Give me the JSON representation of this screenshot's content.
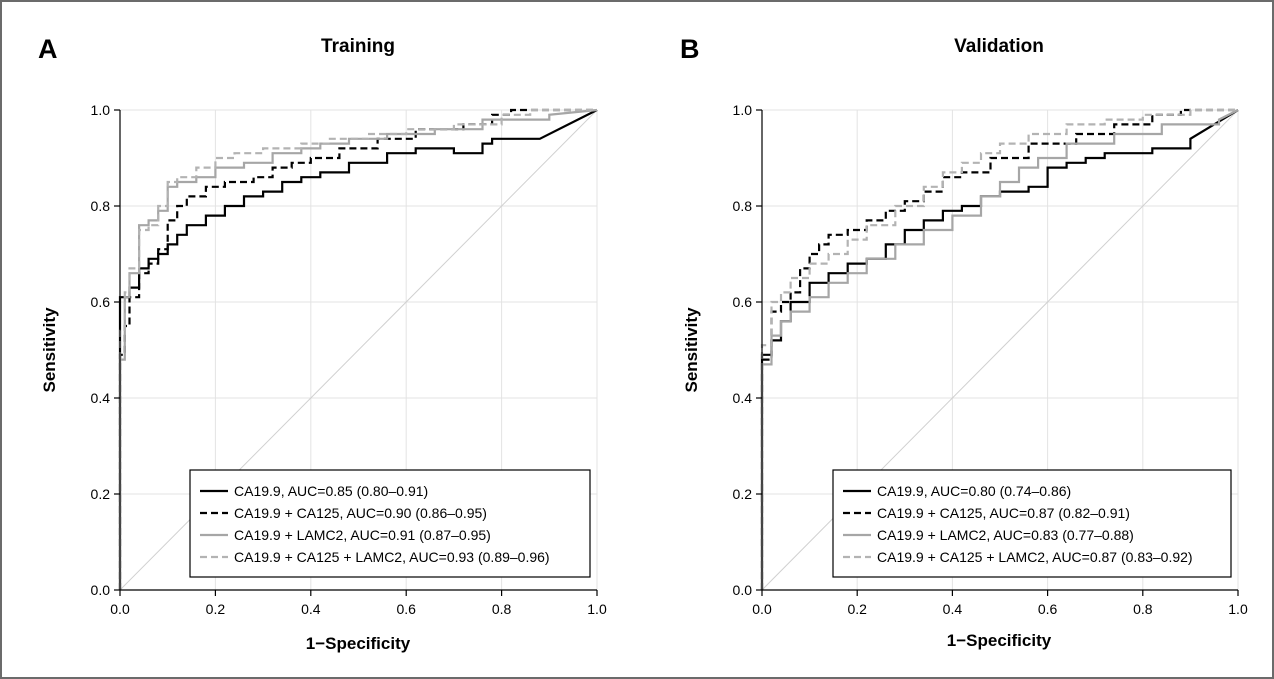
{
  "colors": {
    "black_solid": "#000000",
    "black_dashed": "#000000",
    "gray_solid": "#a6a6a6",
    "gray_dashed": "#b3b3b3",
    "grid": "#e3e3e3",
    "diagonal": "#d0d0d0"
  },
  "chart_data": [
    {
      "type": "line",
      "panel_letter": "A",
      "title": "Training",
      "xlabel": "1−Specificity",
      "ylabel": "Sensitivity",
      "xlim": [
        0,
        1
      ],
      "ylim": [
        0,
        1
      ],
      "xticks": [
        "0.0",
        "0.2",
        "0.4",
        "0.6",
        "0.8",
        "1.0"
      ],
      "yticks": [
        "0.0",
        "0.2",
        "0.4",
        "0.6",
        "0.8",
        "1.0"
      ],
      "grid": true,
      "reference_line": "diagonal",
      "legend_position": "bottom-right",
      "series": [
        {
          "name": "CA19.9, AUC=0.85 (0.80–0.91)",
          "style": "black_solid",
          "x": [
            0,
            0,
            0.02,
            0.02,
            0.04,
            0.04,
            0.06,
            0.06,
            0.08,
            0.08,
            0.1,
            0.1,
            0.12,
            0.12,
            0.14,
            0.14,
            0.18,
            0.18,
            0.22,
            0.22,
            0.26,
            0.26,
            0.3,
            0.3,
            0.34,
            0.34,
            0.38,
            0.38,
            0.42,
            0.42,
            0.48,
            0.48,
            0.56,
            0.56,
            0.62,
            0.62,
            0.7,
            0.7,
            0.76,
            0.76,
            0.78,
            0.78,
            0.88,
            1.0
          ],
          "y": [
            0,
            0.61,
            0.61,
            0.63,
            0.63,
            0.67,
            0.67,
            0.69,
            0.69,
            0.7,
            0.7,
            0.72,
            0.72,
            0.74,
            0.74,
            0.76,
            0.76,
            0.78,
            0.78,
            0.8,
            0.8,
            0.82,
            0.82,
            0.83,
            0.83,
            0.85,
            0.85,
            0.86,
            0.86,
            0.87,
            0.87,
            0.89,
            0.89,
            0.91,
            0.91,
            0.92,
            0.92,
            0.91,
            0.91,
            0.93,
            0.93,
            0.94,
            0.94,
            1.0
          ]
        },
        {
          "name": "CA19.9 + CA125, AUC=0.90 (0.86–0.95)",
          "style": "black_dashed",
          "x": [
            0,
            0,
            0.01,
            0.01,
            0.02,
            0.02,
            0.04,
            0.04,
            0.06,
            0.06,
            0.08,
            0.08,
            0.1,
            0.1,
            0.12,
            0.12,
            0.14,
            0.14,
            0.18,
            0.18,
            0.22,
            0.22,
            0.28,
            0.28,
            0.32,
            0.32,
            0.36,
            0.36,
            0.4,
            0.4,
            0.46,
            0.46,
            0.54,
            0.54,
            0.62,
            0.62,
            0.72,
            0.72,
            0.78,
            0.78,
            0.82,
            0.82,
            1.0
          ],
          "y": [
            0,
            0.49,
            0.49,
            0.55,
            0.55,
            0.61,
            0.61,
            0.66,
            0.66,
            0.68,
            0.68,
            0.71,
            0.71,
            0.77,
            0.77,
            0.8,
            0.8,
            0.82,
            0.82,
            0.84,
            0.84,
            0.85,
            0.85,
            0.86,
            0.86,
            0.88,
            0.88,
            0.89,
            0.89,
            0.9,
            0.9,
            0.92,
            0.92,
            0.94,
            0.94,
            0.96,
            0.96,
            0.97,
            0.97,
            0.99,
            0.99,
            1.0,
            1.0
          ]
        },
        {
          "name": "CA19.9 + LAMC2, AUC=0.91 (0.87–0.95)",
          "style": "gray_solid",
          "x": [
            0,
            0,
            0.01,
            0.01,
            0.02,
            0.02,
            0.04,
            0.04,
            0.06,
            0.06,
            0.08,
            0.08,
            0.1,
            0.1,
            0.12,
            0.12,
            0.16,
            0.16,
            0.2,
            0.2,
            0.26,
            0.26,
            0.32,
            0.32,
            0.38,
            0.38,
            0.42,
            0.42,
            0.48,
            0.48,
            0.56,
            0.56,
            0.66,
            0.66,
            0.76,
            0.76,
            0.9,
            0.9,
            1.0
          ],
          "y": [
            0,
            0.48,
            0.48,
            0.61,
            0.61,
            0.66,
            0.66,
            0.76,
            0.76,
            0.77,
            0.77,
            0.79,
            0.79,
            0.84,
            0.84,
            0.85,
            0.85,
            0.86,
            0.86,
            0.88,
            0.88,
            0.89,
            0.89,
            0.91,
            0.91,
            0.92,
            0.92,
            0.93,
            0.93,
            0.94,
            0.94,
            0.95,
            0.95,
            0.96,
            0.96,
            0.98,
            0.98,
            0.99,
            1.0
          ]
        },
        {
          "name": "CA19.9 + CA125 + LAMC2, AUC=0.93 (0.89–0.96)",
          "style": "gray_dashed",
          "x": [
            0,
            0,
            0.01,
            0.01,
            0.02,
            0.02,
            0.04,
            0.04,
            0.06,
            0.06,
            0.08,
            0.08,
            0.1,
            0.1,
            0.12,
            0.12,
            0.16,
            0.16,
            0.2,
            0.2,
            0.24,
            0.24,
            0.3,
            0.3,
            0.38,
            0.38,
            0.44,
            0.44,
            0.52,
            0.52,
            0.6,
            0.6,
            0.7,
            0.7,
            0.8,
            0.8,
            0.86,
            0.86,
            1.0
          ],
          "y": [
            0,
            0.54,
            0.54,
            0.62,
            0.62,
            0.67,
            0.67,
            0.75,
            0.75,
            0.76,
            0.76,
            0.8,
            0.8,
            0.85,
            0.85,
            0.86,
            0.86,
            0.88,
            0.88,
            0.9,
            0.9,
            0.91,
            0.91,
            0.92,
            0.92,
            0.93,
            0.93,
            0.94,
            0.94,
            0.95,
            0.95,
            0.96,
            0.96,
            0.97,
            0.97,
            0.99,
            0.99,
            1.0,
            1.0
          ]
        }
      ]
    },
    {
      "type": "line",
      "panel_letter": "B",
      "title": "Validation",
      "xlabel": "1−Specificity",
      "ylabel": "Sensitivity",
      "xlim": [
        0,
        1
      ],
      "ylim": [
        0,
        1
      ],
      "xticks": [
        "0.0",
        "0.2",
        "0.4",
        "0.6",
        "0.8",
        "1.0"
      ],
      "yticks": [
        "0.0",
        "0.2",
        "0.4",
        "0.6",
        "0.8",
        "1.0"
      ],
      "grid": true,
      "reference_line": "diagonal",
      "legend_position": "bottom-right",
      "series": [
        {
          "name": "CA19.9, AUC=0.80 (0.74–0.86)",
          "style": "black_solid",
          "x": [
            0,
            0,
            0.02,
            0.02,
            0.04,
            0.04,
            0.06,
            0.06,
            0.1,
            0.1,
            0.14,
            0.14,
            0.18,
            0.18,
            0.22,
            0.22,
            0.26,
            0.26,
            0.3,
            0.3,
            0.34,
            0.34,
            0.38,
            0.38,
            0.42,
            0.42,
            0.46,
            0.46,
            0.5,
            0.5,
            0.56,
            0.56,
            0.6,
            0.6,
            0.64,
            0.64,
            0.68,
            0.68,
            0.72,
            0.72,
            0.82,
            0.82,
            0.9,
            0.9,
            1.0
          ],
          "y": [
            0,
            0.49,
            0.49,
            0.52,
            0.52,
            0.56,
            0.56,
            0.6,
            0.6,
            0.64,
            0.64,
            0.66,
            0.66,
            0.68,
            0.68,
            0.69,
            0.69,
            0.72,
            0.72,
            0.75,
            0.75,
            0.77,
            0.77,
            0.79,
            0.79,
            0.8,
            0.8,
            0.82,
            0.82,
            0.83,
            0.83,
            0.84,
            0.84,
            0.88,
            0.88,
            0.89,
            0.89,
            0.9,
            0.9,
            0.91,
            0.91,
            0.92,
            0.92,
            0.94,
            1.0
          ]
        },
        {
          "name": "CA19.9 + CA125, AUC=0.87 (0.82–0.91)",
          "style": "black_dashed",
          "x": [
            0,
            0,
            0.02,
            0.02,
            0.04,
            0.04,
            0.06,
            0.06,
            0.08,
            0.08,
            0.1,
            0.1,
            0.12,
            0.12,
            0.14,
            0.14,
            0.18,
            0.18,
            0.22,
            0.22,
            0.26,
            0.26,
            0.3,
            0.3,
            0.34,
            0.34,
            0.38,
            0.38,
            0.42,
            0.42,
            0.48,
            0.48,
            0.56,
            0.56,
            0.66,
            0.66,
            0.74,
            0.74,
            0.82,
            0.82,
            0.88,
            0.88,
            1.0
          ],
          "y": [
            0,
            0.48,
            0.48,
            0.58,
            0.58,
            0.6,
            0.6,
            0.62,
            0.62,
            0.67,
            0.67,
            0.7,
            0.7,
            0.72,
            0.72,
            0.74,
            0.74,
            0.75,
            0.75,
            0.77,
            0.77,
            0.79,
            0.79,
            0.81,
            0.81,
            0.83,
            0.83,
            0.86,
            0.86,
            0.87,
            0.87,
            0.9,
            0.9,
            0.93,
            0.93,
            0.95,
            0.95,
            0.97,
            0.97,
            0.99,
            0.99,
            1.0,
            1.0
          ]
        },
        {
          "name": "CA19.9 + LAMC2, AUC=0.83 (0.77–0.88)",
          "style": "gray_solid",
          "x": [
            0,
            0,
            0.02,
            0.02,
            0.04,
            0.04,
            0.06,
            0.06,
            0.1,
            0.1,
            0.14,
            0.14,
            0.18,
            0.18,
            0.22,
            0.22,
            0.28,
            0.28,
            0.34,
            0.34,
            0.4,
            0.4,
            0.46,
            0.46,
            0.5,
            0.5,
            0.54,
            0.54,
            0.58,
            0.58,
            0.64,
            0.64,
            0.74,
            0.74,
            0.84,
            0.84,
            0.96,
            0.96,
            1.0
          ],
          "y": [
            0,
            0.47,
            0.47,
            0.53,
            0.53,
            0.56,
            0.56,
            0.58,
            0.58,
            0.61,
            0.61,
            0.64,
            0.64,
            0.66,
            0.66,
            0.69,
            0.69,
            0.72,
            0.72,
            0.75,
            0.75,
            0.78,
            0.78,
            0.82,
            0.82,
            0.85,
            0.85,
            0.88,
            0.88,
            0.9,
            0.9,
            0.93,
            0.93,
            0.95,
            0.95,
            0.97,
            0.97,
            0.98,
            1.0
          ]
        },
        {
          "name": "CA19.9 + CA125 + LAMC2, AUC=0.87 (0.83–0.92)",
          "style": "gray_dashed",
          "x": [
            0,
            0,
            0.02,
            0.02,
            0.04,
            0.04,
            0.06,
            0.06,
            0.1,
            0.1,
            0.14,
            0.14,
            0.18,
            0.18,
            0.22,
            0.22,
            0.28,
            0.28,
            0.34,
            0.34,
            0.38,
            0.38,
            0.42,
            0.42,
            0.46,
            0.46,
            0.5,
            0.5,
            0.56,
            0.56,
            0.64,
            0.64,
            0.72,
            0.72,
            0.8,
            0.8,
            0.9,
            0.9,
            1.0
          ],
          "y": [
            0,
            0.51,
            0.51,
            0.6,
            0.6,
            0.62,
            0.62,
            0.65,
            0.65,
            0.68,
            0.68,
            0.7,
            0.7,
            0.73,
            0.73,
            0.76,
            0.76,
            0.8,
            0.8,
            0.84,
            0.84,
            0.87,
            0.87,
            0.89,
            0.89,
            0.91,
            0.91,
            0.93,
            0.93,
            0.95,
            0.95,
            0.97,
            0.97,
            0.98,
            0.98,
            0.99,
            0.99,
            1.0,
            1.0
          ]
        }
      ]
    }
  ]
}
